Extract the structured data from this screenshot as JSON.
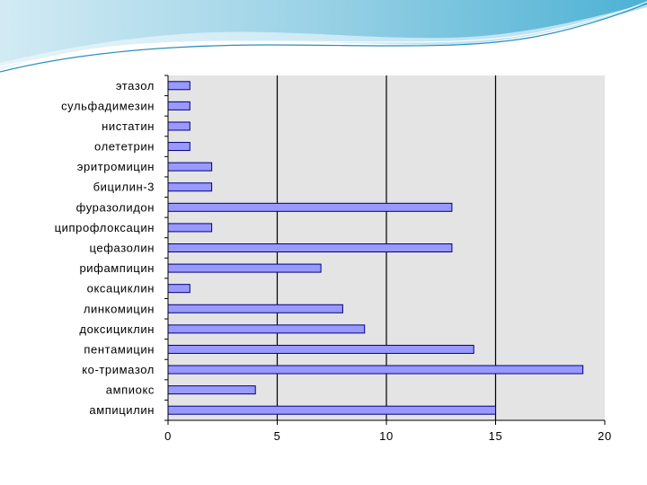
{
  "chart_data": {
    "type": "bar",
    "orientation": "horizontal",
    "categories": [
      "этазол",
      "сульфадимезин",
      "нистатин",
      "олететрин",
      "эритромицин",
      "бицилин-3",
      "фуразолидон",
      "ципрофлоксацин",
      "цефазолин",
      "рифампицин",
      "оксациклин",
      "линкомицин",
      "доксициклин",
      "пентамицин",
      "ко-тримазол",
      "ампиокс",
      "ампицилин"
    ],
    "values": [
      1,
      1,
      1,
      1,
      2,
      2,
      13,
      2,
      13,
      7,
      1,
      8,
      9,
      14,
      19,
      4,
      15
    ],
    "xlim": [
      0,
      20
    ],
    "xticks": [
      "0",
      "5",
      "10",
      "15",
      "20"
    ],
    "title": "",
    "xlabel": "",
    "ylabel": "",
    "grid": "vertical major gridlines",
    "legend": "none",
    "colors": {
      "bar_fill": "#9999ff",
      "bar_stroke": "#000080",
      "plot_background": "#e4e4e4",
      "gridline": "#000000"
    }
  }
}
